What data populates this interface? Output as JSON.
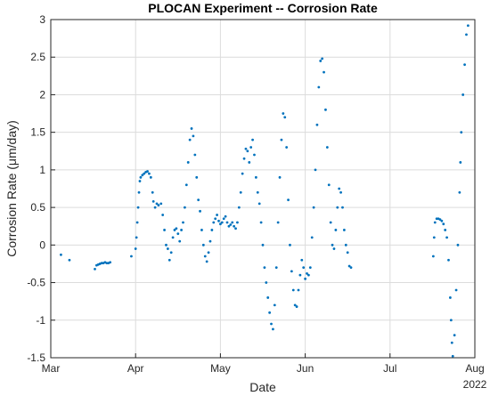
{
  "chart_data": {
    "type": "scatter",
    "title": "PLOCAN Experiment -- Corrosion Rate",
    "xlabel": "Date",
    "ylabel": "Corrosion Rate (μm/day)",
    "x_axis_year": "2022",
    "color": "#0072bd",
    "grid": true,
    "xlim": [
      3,
      8
    ],
    "xticks": [
      {
        "value": 3,
        "label": "Mar"
      },
      {
        "value": 4,
        "label": "Apr"
      },
      {
        "value": 5,
        "label": "May"
      },
      {
        "value": 6,
        "label": "Jun"
      },
      {
        "value": 7,
        "label": "Jul"
      },
      {
        "value": 8,
        "label": "Aug"
      }
    ],
    "ylim": [
      -1.5,
      3
    ],
    "yticks": [
      -1.5,
      -1,
      -0.5,
      0,
      0.5,
      1,
      1.5,
      2,
      2.5,
      3
    ],
    "x": [
      3.12,
      3.22,
      3.52,
      3.54,
      3.56,
      3.58,
      3.6,
      3.62,
      3.64,
      3.66,
      3.68,
      3.7,
      3.95,
      4.0,
      4.01,
      4.02,
      4.03,
      4.04,
      4.05,
      4.06,
      4.08,
      4.1,
      4.12,
      4.14,
      4.16,
      4.18,
      4.2,
      4.21,
      4.23,
      4.25,
      4.27,
      4.3,
      4.32,
      4.34,
      4.36,
      4.38,
      4.4,
      4.42,
      4.44,
      4.46,
      4.48,
      4.5,
      4.52,
      4.54,
      4.56,
      4.58,
      4.6,
      4.62,
      4.64,
      4.66,
      4.68,
      4.7,
      4.72,
      4.74,
      4.76,
      4.78,
      4.8,
      4.82,
      4.84,
      4.86,
      4.88,
      4.9,
      4.92,
      4.94,
      4.96,
      4.98,
      5.0,
      5.02,
      5.04,
      5.06,
      5.08,
      5.1,
      5.12,
      5.14,
      5.16,
      5.18,
      5.2,
      5.22,
      5.24,
      5.26,
      5.28,
      5.3,
      5.32,
      5.34,
      5.36,
      5.38,
      5.4,
      5.42,
      5.44,
      5.46,
      5.48,
      5.5,
      5.52,
      5.54,
      5.56,
      5.58,
      5.6,
      5.62,
      5.64,
      5.66,
      5.68,
      5.7,
      5.72,
      5.74,
      5.76,
      5.78,
      5.8,
      5.82,
      5.84,
      5.86,
      5.88,
      5.9,
      5.92,
      5.94,
      5.96,
      5.98,
      6.0,
      6.02,
      6.04,
      6.06,
      6.08,
      6.1,
      6.12,
      6.14,
      6.16,
      6.18,
      6.2,
      6.22,
      6.24,
      6.26,
      6.28,
      6.3,
      6.32,
      6.34,
      6.36,
      6.38,
      6.4,
      6.42,
      6.44,
      6.46,
      6.48,
      6.5,
      6.52,
      6.54,
      7.51,
      7.52,
      7.53,
      7.55,
      7.57,
      7.59,
      7.61,
      7.63,
      7.65,
      7.67,
      7.69,
      7.71,
      7.72,
      7.73,
      7.74,
      7.76,
      7.78,
      7.8,
      7.82,
      7.83,
      7.84,
      7.86,
      7.88,
      7.9,
      7.92
    ],
    "values": [
      -0.13,
      -0.2,
      -0.32,
      -0.27,
      -0.26,
      -0.25,
      -0.24,
      -0.24,
      -0.23,
      -0.24,
      -0.24,
      -0.23,
      -0.15,
      -0.05,
      0.1,
      0.3,
      0.5,
      0.7,
      0.85,
      0.9,
      0.93,
      0.95,
      0.97,
      0.98,
      0.95,
      0.9,
      0.7,
      0.58,
      0.5,
      0.55,
      0.53,
      0.55,
      0.4,
      0.2,
      0.0,
      -0.05,
      -0.2,
      -0.1,
      0.1,
      0.2,
      0.22,
      0.15,
      0.05,
      0.2,
      0.3,
      0.5,
      0.8,
      1.1,
      1.4,
      1.55,
      1.45,
      1.2,
      0.9,
      0.6,
      0.45,
      0.2,
      0.0,
      -0.15,
      -0.22,
      -0.1,
      0.05,
      0.2,
      0.3,
      0.35,
      0.4,
      0.32,
      0.28,
      0.3,
      0.35,
      0.38,
      0.3,
      0.25,
      0.27,
      0.3,
      0.25,
      0.22,
      0.3,
      0.5,
      0.7,
      0.95,
      1.15,
      1.28,
      1.25,
      1.1,
      1.3,
      1.4,
      1.2,
      0.9,
      0.7,
      0.55,
      0.3,
      0.0,
      -0.3,
      -0.5,
      -0.7,
      -0.9,
      -1.05,
      -1.12,
      -0.8,
      -0.3,
      0.3,
      0.9,
      1.4,
      1.75,
      1.7,
      1.3,
      0.6,
      0.0,
      -0.35,
      -0.6,
      -0.8,
      -0.82,
      -0.6,
      -0.4,
      -0.2,
      -0.3,
      -0.45,
      -0.38,
      -0.4,
      -0.3,
      0.1,
      0.5,
      1.0,
      1.6,
      2.1,
      2.45,
      2.48,
      2.3,
      1.8,
      1.3,
      0.8,
      0.3,
      0.0,
      -0.05,
      0.2,
      0.5,
      0.75,
      0.7,
      0.5,
      0.2,
      0.0,
      -0.1,
      -0.28,
      -0.3,
      -0.15,
      0.1,
      0.3,
      0.35,
      0.35,
      0.34,
      0.32,
      0.28,
      0.2,
      0.1,
      -0.2,
      -0.7,
      -1.0,
      -1.3,
      -1.48,
      -1.2,
      -0.6,
      0.0,
      0.7,
      1.1,
      1.5,
      2.0,
      2.4,
      2.8,
      2.92
    ]
  }
}
